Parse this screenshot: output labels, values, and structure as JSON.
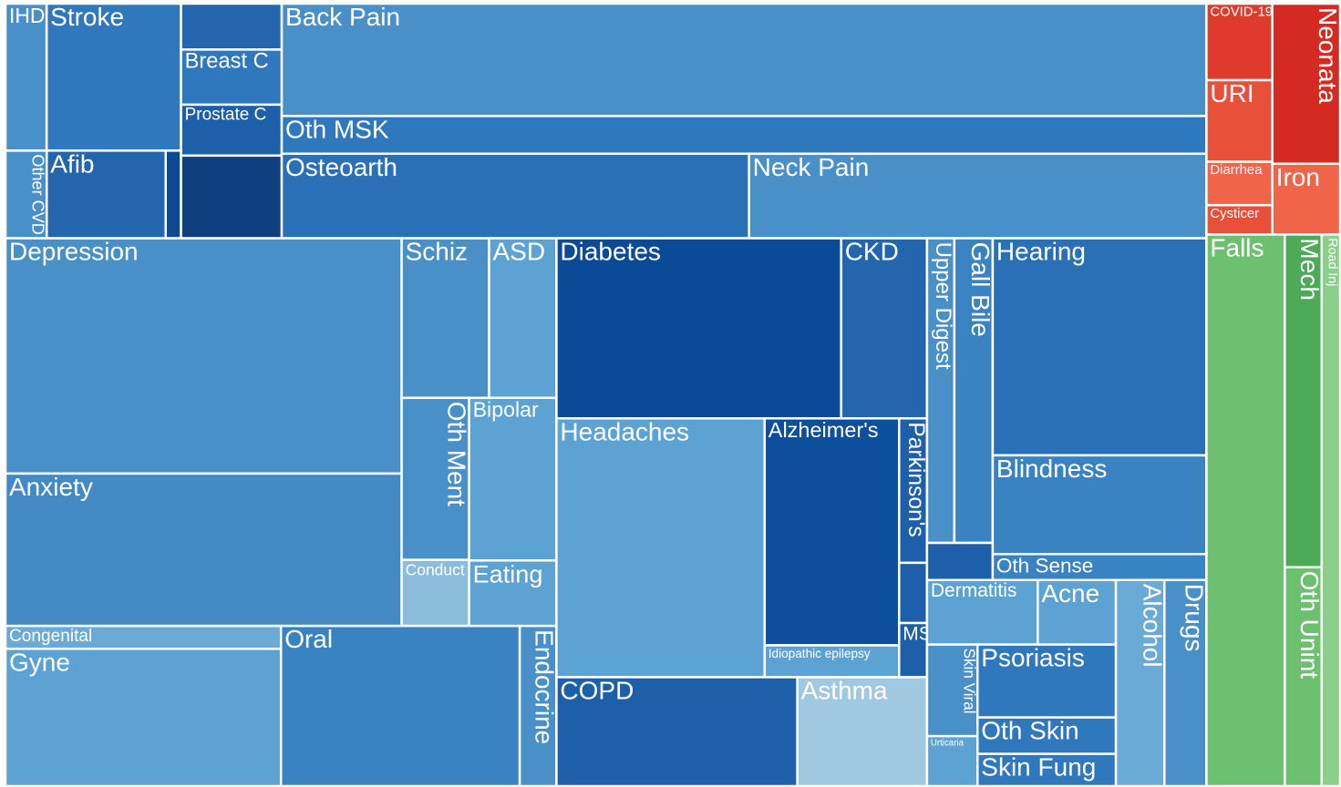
{
  "chart_data": {
    "type": "treemap",
    "children": [
      {
        "children": [
          {
            "children": [
              {
                "children": [
                  {
                    "children": [
                      {
                        "children": [
                          {
                            "name": "IHD",
                            "value": 7.2,
                            "color": "#4a90c8"
                          },
                          {
                            "name": "Stroke",
                            "value": 23.5,
                            "color": "#2f78bd"
                          }
                        ]
                      },
                      {
                        "children": [
                          {
                            "name": "Other CVD",
                            "value": 4.3,
                            "color": "#4a90c8"
                          },
                          {
                            "name": "Afib",
                            "value": 12.4,
                            "color": "#2366ae"
                          },
                          {
                            "name": null,
                            "value": 1.6,
                            "color": "#0d4a94"
                          }
                        ]
                      }
                    ]
                  },
                  {
                    "children": [
                      {
                        "name": null,
                        "value": 5.5,
                        "color": "#2366ae"
                      },
                      {
                        "name": "Breast C",
                        "value": 6.6,
                        "color": "#2f78bd"
                      },
                      {
                        "name": "Prostate C",
                        "value": 6.1,
                        "color": "#1d5fa8"
                      },
                      {
                        "name": null,
                        "value": 9.9,
                        "color": "#0f3f7e"
                      }
                    ]
                  },
                  {
                    "children": [
                      {
                        "name": "Back Pain",
                        "value": 123.6,
                        "color": "#4a90c8"
                      },
                      {
                        "name": "Oth MSK",
                        "value": 41.5,
                        "color": "#2f78bd"
                      },
                      {
                        "children": [
                          {
                            "name": "Osteoarth",
                            "value": 47,
                            "color": "#2a70b6"
                          },
                          {
                            "name": "Neck Pain",
                            "value": 46,
                            "color": "#4a90c8"
                          }
                        ]
                      }
                    ]
                  }
                ]
              },
              {
                "children": [
                  {
                    "children": [
                      {
                        "children": [
                          {
                            "children": [
                              {
                                "name": "Depression",
                                "value": 110.9,
                                "color": "#4a90c8"
                              },
                              {
                                "name": "Anxiety",
                                "value": 71.8,
                                "color": "#438ac5"
                              }
                            ]
                          },
                          {
                            "children": [
                              {
                                "children": [
                                  {
                                    "name": "Schiz",
                                    "value": 16.6,
                                    "color": "#4a90c8"
                                  },
                                  {
                                    "name": "ASD",
                                    "value": 12.8,
                                    "color": "#5ca3d3"
                                  }
                                ]
                              },
                              {
                                "children": [
                                  {
                                    "children": [
                                      {
                                        "name": "Oth Ment",
                                        "value": 13.0,
                                        "color": "#4a90c8"
                                      },
                                      {
                                        "name": "Conduct",
                                        "value": 5.3,
                                        "color": "#8cbcdc"
                                      }
                                    ]
                                  },
                                  {
                                    "children": [
                                      {
                                        "name": "Bipolar",
                                        "value": 16.9,
                                        "color": "#5ca3d3"
                                      },
                                      {
                                        "name": "Eating",
                                        "value": 6.8,
                                        "color": "#5ca3d3"
                                      }
                                    ]
                                  }
                                ]
                              }
                            ]
                          }
                        ]
                      },
                      {
                        "children": [
                          {
                            "children": [
                              {
                                "name": "Congenital",
                                "value": 7.5,
                                "color": "#6aaad6"
                              },
                              {
                                "name": "Gyne",
                                "value": 45,
                                "color": "#5ca3d3"
                              }
                            ]
                          },
                          {
                            "name": "Oral",
                            "value": 45.5,
                            "color": "#3a83c2"
                          },
                          {
                            "name": "Endocrine",
                            "value": 7.0,
                            "color": "#4a90c8"
                          }
                        ]
                      }
                    ]
                  },
                  {
                    "children": [
                      {
                        "children": [
                          {
                            "name": "Diabetes",
                            "value": 61,
                            "color": "#0b4a96"
                          },
                          {
                            "name": "CKD",
                            "value": 18.4,
                            "color": "#2366ae"
                          }
                        ]
                      },
                      {
                        "children": [
                          {
                            "name": "Headaches",
                            "value": 64.1,
                            "color": "#5ca3d3"
                          },
                          {
                            "children": [
                              {
                                "name": "Alzheimer's",
                                "value": 36.3,
                                "color": "#0d4f9c"
                              },
                              {
                                "name": "Idiopathic epilepsy",
                                "value": 5.1,
                                "color": "#5ca3d3"
                              }
                            ]
                          },
                          {
                            "children": [
                              {
                                "name": "Parkinson's",
                                "value": 4.8,
                                "color": "#1d5fa8"
                              },
                              {
                                "name": null,
                                "value": 2.0,
                                "color": "#1d5fa8"
                              },
                              {
                                "name": "MS",
                                "value": 1.8,
                                "color": "#1d5fa8"
                              }
                            ]
                          }
                        ]
                      },
                      {
                        "children": [
                          {
                            "name": "COPD",
                            "value": 31.2,
                            "color": "#1d5fa8"
                          },
                          {
                            "name": "Asthma",
                            "value": 16.8,
                            "color": "#a0c8e0"
                          }
                        ]
                      }
                    ]
                  },
                  {
                    "children": [
                      {
                        "children": [
                          {
                            "children": [
                              {
                                "children": [
                                  {
                                    "name": "Upper Digest",
                                    "value": 9.9,
                                    "color": "#4a90c8"
                                  },
                                  {
                                    "name": "Gall Bile",
                                    "value": 13.9,
                                    "color": "#3a83c2"
                                  }
                                ]
                              },
                              {
                                "name": null,
                                "value": 2.9,
                                "color": "#1d5fa8"
                              }
                            ]
                          },
                          {
                            "children": [
                              {
                                "name": "Hearing",
                                "value": 55.2,
                                "color": "#2a70b6"
                              },
                              {
                                "name": "Blindness",
                                "value": 25.1,
                                "color": "#3a83c2"
                              },
                              {
                                "name": "Oth Sense",
                                "value": 6.6,
                                "color": "#3a83c2"
                              }
                            ]
                          }
                        ]
                      },
                      {
                        "children": [
                          {
                            "children": [
                              {
                                "children": [
                                  {
                                    "name": "Dermatitis",
                                    "value": 8.5,
                                    "color": "#5ca3d3"
                                  },
                                  {
                                    "name": "Acne",
                                    "value": 6.0,
                                    "color": "#5ca3d3"
                                  }
                                ]
                              },
                              {
                                "children": [
                                  {
                                    "children": [
                                      {
                                        "name": "Skin Viral",
                                        "value": 5.5,
                                        "color": "#4a90c8"
                                      },
                                      {
                                        "name": "Urticaria",
                                        "value": 3.0,
                                        "color": "#5ca3d3"
                                      }
                                    ]
                                  },
                                  {
                                    "children": [
                                      {
                                        "name": "Psoriasis",
                                        "value": 12.0,
                                        "color": "#2f78bd"
                                      },
                                      {
                                        "name": "Oth Skin",
                                        "value": 6.0,
                                        "color": "#2f78bd"
                                      },
                                      {
                                        "name": "Skin Fung",
                                        "value": 5.3,
                                        "color": "#2f78bd"
                                      }
                                    ]
                                  }
                                ]
                              }
                            ]
                          },
                          {
                            "name": "Alcohol",
                            "value": 11.9,
                            "color": "#6aaad6"
                          },
                          {
                            "name": "Drugs",
                            "value": 10.3,
                            "color": "#4a90c8"
                          }
                        ]
                      }
                    ]
                  }
                ]
              }
            ]
          },
          {
            "children": [
              {
                "children": [
                  {
                    "children": [
                      {
                        "name": "COVID-19",
                        "value": 6.0,
                        "color": "#e03a2c"
                      },
                      {
                        "name": "URI",
                        "value": 6.4,
                        "color": "#e8503a"
                      },
                      {
                        "name": "Diarrhea",
                        "value": 3.4,
                        "color": "#f0644a"
                      },
                      {
                        "name": "Cysticer",
                        "value": 2.3,
                        "color": "#e8503a"
                      }
                    ]
                  },
                  {
                    "children": [
                      {
                        "name": "Neonata",
                        "value": 12.9,
                        "color": "#d42a22"
                      },
                      {
                        "name": "Iron",
                        "value": 5.7,
                        "color": "#f0644a"
                      }
                    ]
                  }
                ]
              },
              {
                "children": [
                  {
                    "name": "Falls",
                    "value": 51.4,
                    "color": "#6cc070"
                  },
                  {
                    "children": [
                      {
                        "name": "Mech",
                        "value": 14.6,
                        "color": "#4caa58"
                      },
                      {
                        "name": "Oth Unint",
                        "value": 9.6,
                        "color": "#6cc070"
                      }
                    ]
                  },
                  {
                    "name": "Road Inj",
                    "value": 12.1,
                    "color": "#8ad08a"
                  }
                ]
              }
            ]
          }
        ]
      }
    ]
  }
}
